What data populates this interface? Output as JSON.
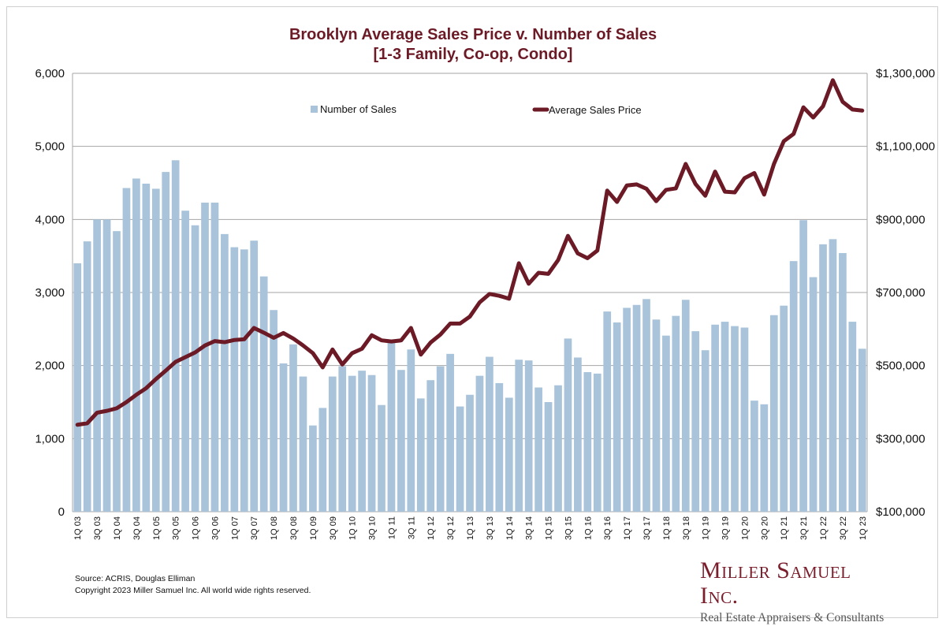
{
  "chart_data": {
    "type": "bar+line",
    "title": [
      "Brooklyn Average Sales Price v. Number of Sales",
      "[1-3 Family, Co-op, Condo]"
    ],
    "categories": [
      "1Q 03",
      "2Q 03",
      "3Q 03",
      "4Q 03",
      "1Q 04",
      "2Q 04",
      "3Q 04",
      "4Q 04",
      "1Q 05",
      "2Q 05",
      "3Q 05",
      "4Q 05",
      "1Q 06",
      "2Q 06",
      "3Q 06",
      "4Q 06",
      "1Q 07",
      "2Q 07",
      "3Q 07",
      "4Q 07",
      "1Q 08",
      "2Q 08",
      "3Q 08",
      "4Q 08",
      "1Q 09",
      "2Q 09",
      "3Q 09",
      "4Q 09",
      "1Q 10",
      "2Q 10",
      "3Q 10",
      "4Q 10",
      "1Q 11",
      "2Q 11",
      "3Q 11",
      "4Q 11",
      "1Q 12",
      "2Q 12",
      "3Q 12",
      "4Q 12",
      "1Q 13",
      "2Q 13",
      "3Q 13",
      "4Q 13",
      "1Q 14",
      "2Q 14",
      "3Q 14",
      "4Q 14",
      "1Q 15",
      "2Q 15",
      "3Q 15",
      "4Q 15",
      "1Q 16",
      "2Q 16",
      "3Q 16",
      "4Q 16",
      "1Q 17",
      "2Q 17",
      "3Q 17",
      "4Q 17",
      "1Q 18",
      "2Q 18",
      "3Q 18",
      "4Q 18",
      "1Q 19",
      "2Q 19",
      "3Q 19",
      "4Q 19",
      "1Q 20",
      "2Q 20",
      "3Q 20",
      "4Q 20",
      "1Q 21",
      "2Q 21",
      "3Q 21",
      "4Q 21",
      "1Q 22",
      "2Q 22",
      "3Q 22",
      "4Q 22",
      "1Q 23"
    ],
    "tick_labels": [
      "1Q 03",
      "3Q 03",
      "1Q 04",
      "3Q 04",
      "1Q 05",
      "3Q 05",
      "1Q 06",
      "3Q 06",
      "1Q 07",
      "3Q 07",
      "1Q 08",
      "3Q 08",
      "1Q 09",
      "3Q 09",
      "1Q 10",
      "3Q 10",
      "1Q 11",
      "3Q 11",
      "1Q 12",
      "3Q 12",
      "1Q 13",
      "3Q 13",
      "1Q 14",
      "3Q 14",
      "1Q 15",
      "3Q 15",
      "1Q 16",
      "3Q 16",
      "1Q 17",
      "3Q 17",
      "1Q 18",
      "3Q 18",
      "1Q 19",
      "3Q 19",
      "1Q 20",
      "3Q 20",
      "1Q 21",
      "3Q 21",
      "1Q 22",
      "3Q 22",
      "1Q 23"
    ],
    "series": [
      {
        "name": "Number of Sales",
        "type": "bar",
        "axis": "left",
        "color": "#a9c4da",
        "values": [
          3400,
          3700,
          4000,
          4000,
          3840,
          4430,
          4560,
          4490,
          4420,
          4650,
          4810,
          4120,
          3920,
          4230,
          4230,
          3800,
          3620,
          3590,
          3710,
          3220,
          2760,
          2030,
          2290,
          1850,
          1180,
          1420,
          1850,
          1990,
          1860,
          1930,
          1870,
          1460,
          2340,
          1940,
          2220,
          1550,
          1800,
          1990,
          2160,
          1440,
          1600,
          1860,
          2120,
          1760,
          1560,
          2080,
          2070,
          1700,
          1500,
          1730,
          2370,
          2110,
          1910,
          1890,
          2740,
          2590,
          2790,
          2830,
          2910,
          2630,
          2410,
          2680,
          2900,
          2470,
          2210,
          2560,
          2600,
          2540,
          2520,
          1520,
          1470,
          2690,
          2820,
          3430,
          3990,
          3210,
          3660,
          3730,
          3540,
          2600,
          2230
        ]
      },
      {
        "name": "Average Sales Price",
        "type": "line",
        "axis": "right",
        "color": "#6b1a26",
        "values": [
          338000,
          342000,
          371000,
          376000,
          383000,
          400000,
          420000,
          438000,
          463000,
          486000,
          510000,
          523000,
          536000,
          555000,
          567000,
          564000,
          570000,
          572000,
          603000,
          590000,
          576000,
          589000,
          574000,
          555000,
          534000,
          495000,
          544000,
          503000,
          534000,
          546000,
          583000,
          569000,
          566000,
          569000,
          603000,
          530000,
          563000,
          585000,
          615000,
          615000,
          634000,
          673000,
          696000,
          691000,
          683000,
          780000,
          724000,
          754000,
          751000,
          789000,
          855000,
          807000,
          794000,
          815000,
          979000,
          948000,
          993000,
          996000,
          984000,
          950000,
          981000,
          985000,
          1052000,
          997000,
          965000,
          1031000,
          976000,
          974000,
          1013000,
          1027000,
          968000,
          1052000,
          1114000,
          1134000,
          1207000,
          1179000,
          1210000,
          1281000,
          1222000,
          1201000,
          1198000
        ]
      }
    ],
    "y_left": {
      "min": 0,
      "max": 6000,
      "ticks": [
        "0",
        "1,000",
        "2,000",
        "3,000",
        "4,000",
        "5,000",
        "6,000"
      ]
    },
    "y_right": {
      "min": 100000,
      "max": 1300000,
      "ticks": [
        "$100,000",
        "$300,000",
        "$500,000",
        "$700,000",
        "$900,000",
        "$1,100,000",
        "$1,300,000"
      ]
    },
    "grid": "horizontal",
    "legend": "top, inside plot"
  },
  "footer": {
    "source": "Source: ACRIS, Douglas Elliman",
    "copyright": "Copyright 2023 Miller Samuel Inc.  All world wide rights reserved."
  },
  "logo": {
    "name": "Miller Samuel Inc.",
    "tagline": "Real Estate Appraisers & Consultants"
  }
}
